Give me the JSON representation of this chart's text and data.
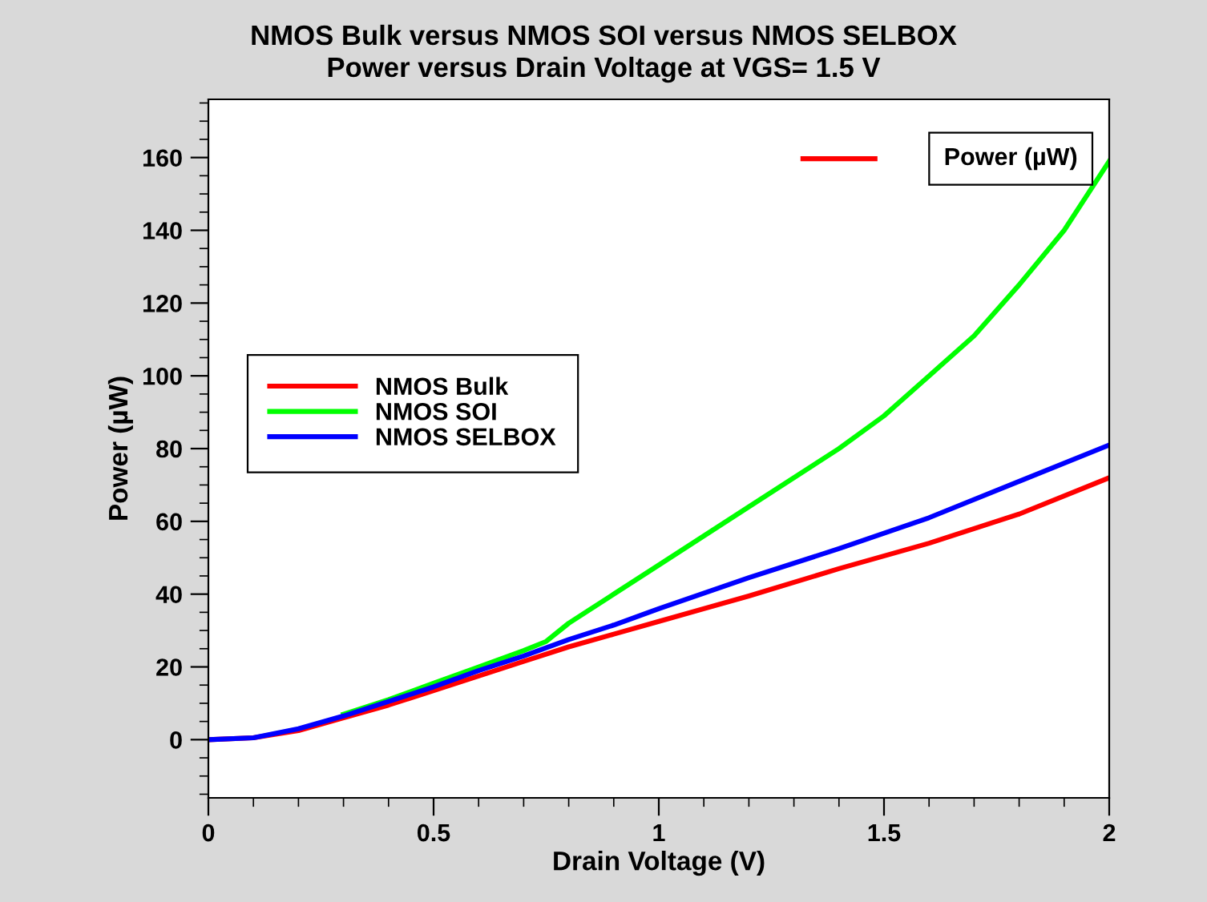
{
  "chart_data": {
    "type": "line",
    "title": "NMOS Bulk versus NMOS SOI versus NMOS SELBOX",
    "subtitle": "Power versus Drain Voltage at VGS= 1.5 V",
    "xlabel": "Drain Voltage (V)",
    "ylabel": "Power (µW)",
    "annotations": [
      "Power (µW)"
    ],
    "xlim": [
      0,
      2
    ],
    "xticks": [
      0,
      0.5,
      1,
      1.5,
      2
    ],
    "ylim": [
      -16,
      176
    ],
    "yticks": [
      0,
      20,
      40,
      60,
      80,
      100,
      120,
      140,
      160
    ],
    "grid": false,
    "legend": "left",
    "marker": "none",
    "line_style": "solid",
    "series": [
      {
        "name": "NMOS Bulk",
        "color": "#ff0000",
        "x": [
          0,
          0.1,
          0.2,
          0.3,
          0.4,
          0.5,
          0.6,
          0.7,
          0.8,
          0.9,
          1.0,
          1.2,
          1.4,
          1.6,
          1.8,
          2.0
        ],
        "values": [
          0,
          0.5,
          2.5,
          6,
          9.5,
          13.5,
          17.5,
          21.5,
          25.5,
          29,
          32.5,
          39.5,
          47,
          54,
          62,
          72
        ]
      },
      {
        "name": "NMOS SOI",
        "color": "#00ff00",
        "x": [
          0.3,
          0.4,
          0.5,
          0.6,
          0.7,
          0.75,
          0.8,
          0.9,
          1.0,
          1.2,
          1.4,
          1.5,
          1.6,
          1.7,
          1.8,
          1.9,
          2.0
        ],
        "values": [
          7,
          11,
          15.5,
          20,
          24.5,
          27,
          32,
          40,
          48,
          64,
          80,
          89,
          100,
          111,
          125,
          140,
          159
        ]
      },
      {
        "name": "NMOS SELBOX",
        "color": "#0000ff",
        "x": [
          0,
          0.1,
          0.2,
          0.3,
          0.4,
          0.5,
          0.6,
          0.7,
          0.8,
          0.9,
          1.0,
          1.2,
          1.4,
          1.6,
          1.8,
          2.0
        ],
        "values": [
          0,
          0.5,
          3,
          6.5,
          10.5,
          14.5,
          19,
          23,
          27.5,
          31.5,
          36,
          44.5,
          52.5,
          61,
          71,
          81
        ]
      }
    ]
  }
}
